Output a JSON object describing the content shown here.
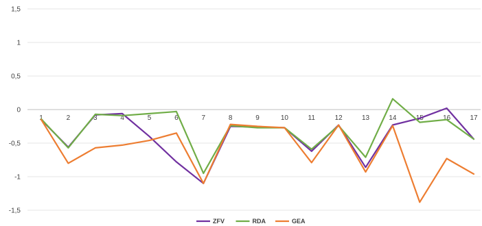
{
  "chart_data": {
    "type": "line",
    "title": "",
    "xlabel": "",
    "ylabel": "",
    "x": [
      "1",
      "2",
      "3",
      "4",
      "5",
      "6",
      "7",
      "8",
      "9",
      "10",
      "11",
      "12",
      "13",
      "14",
      "15",
      "16",
      "17"
    ],
    "ylim": [
      -1.5,
      1.5
    ],
    "yticks": [
      1.5,
      1,
      0.5,
      0,
      -0.5,
      -1,
      -1.5
    ],
    "ytick_labels": [
      "1,5",
      "1",
      "0,5",
      "0",
      "-0,5",
      "-1",
      "-1,5"
    ],
    "grid": "horizontal",
    "legend_position": "bottom",
    "series": [
      {
        "name": "ZFV",
        "color": "#7030a0",
        "values": [
          -0.15,
          -0.56,
          -0.08,
          -0.06,
          -0.4,
          -0.78,
          -1.1,
          -0.25,
          -0.26,
          -0.27,
          -0.62,
          -0.23,
          -0.86,
          -0.23,
          -0.13,
          0.02,
          -0.44
        ]
      },
      {
        "name": "RDA",
        "color": "#70ad47",
        "values": [
          -0.14,
          -0.57,
          -0.07,
          -0.09,
          -0.06,
          -0.03,
          -0.95,
          -0.24,
          -0.27,
          -0.27,
          -0.59,
          -0.24,
          -0.71,
          0.16,
          -0.19,
          -0.15,
          -0.44
        ]
      },
      {
        "name": "GEA",
        "color": "#ed7d31",
        "values": [
          -0.15,
          -0.8,
          -0.57,
          -0.53,
          -0.46,
          -0.35,
          -1.1,
          -0.22,
          -0.25,
          -0.27,
          -0.79,
          -0.23,
          -0.93,
          -0.24,
          -1.38,
          -0.73,
          -0.96
        ]
      }
    ]
  }
}
